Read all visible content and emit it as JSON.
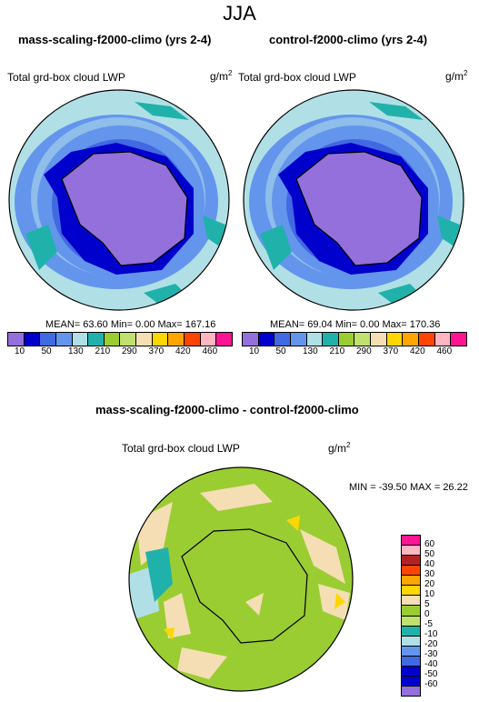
{
  "season": "JJA",
  "panels": [
    {
      "title": "mass-scaling-f2000-climo (yrs 2-4)",
      "subtitle": "Total grd-box cloud LWP",
      "units_base": "g/m",
      "units_exp": "2",
      "stats": "MEAN=  63.60  Min=   0.00  Max= 167.16"
    },
    {
      "title": "control-f2000-climo (yrs 2-4)",
      "subtitle": "Total grd-box cloud LWP",
      "units_base": "g/m",
      "units_exp": "2",
      "stats": "MEAN=  69.04  Min=   0.00  Max= 170.36"
    }
  ],
  "diff": {
    "title": "mass-scaling-f2000-climo - control-f2000-climo",
    "subtitle": "Total grd-box cloud LWP",
    "units_base": "g/m",
    "units_exp": "2",
    "stats": "MIN = -39.50 MAX =  26.22"
  },
  "abs_colorbar": {
    "labels": [
      "10",
      "50",
      "130",
      "210",
      "290",
      "370",
      "420",
      "460"
    ],
    "colors": [
      "#9370db",
      "#0000cd",
      "#4169e1",
      "#6495ed",
      "#b0e0e6",
      "#20b2aa",
      "#9acd32",
      "#c0e070",
      "#f5deb3",
      "#ffd700",
      "#ffa500",
      "#ff4500",
      "#ffb6c1",
      "#ff1493"
    ]
  },
  "diff_colorbar": {
    "labels": [
      "60",
      "50",
      "40",
      "30",
      "20",
      "10",
      "5",
      "0",
      "-5",
      "-10",
      "-20",
      "-30",
      "-40",
      "-50",
      "-60"
    ],
    "colors": [
      "#ff1493",
      "#ffb6c1",
      "#b22222",
      "#ff4500",
      "#ffa500",
      "#ffd700",
      "#f5deb3",
      "#9acd32",
      "#c0e070",
      "#20b2aa",
      "#b0e0e6",
      "#6495ed",
      "#4169e1",
      "#0000cd",
      "#0000cd",
      "#9370db"
    ]
  }
}
